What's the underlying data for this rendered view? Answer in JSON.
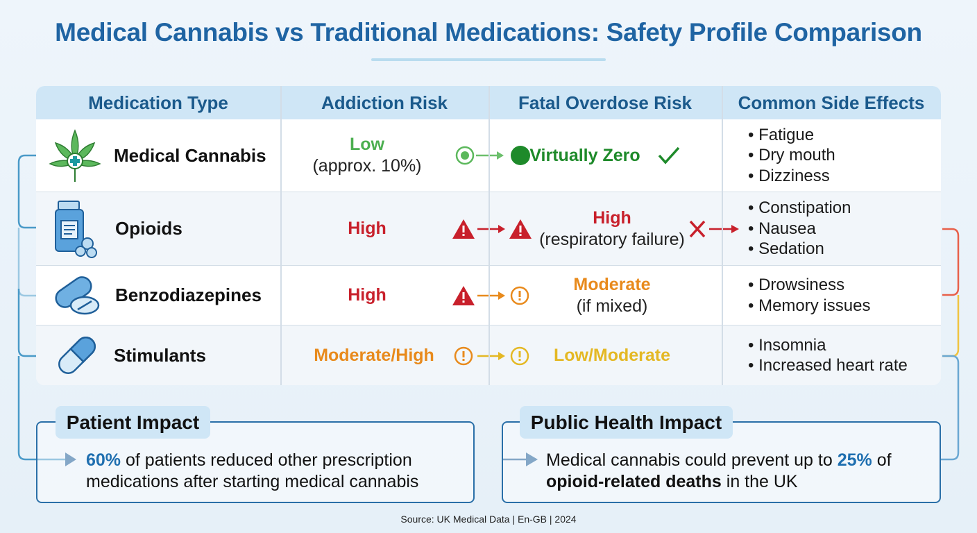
{
  "title": "Medical Cannabis vs Traditional Medications: Safety Profile Comparison",
  "table": {
    "headers": [
      "Medication Type",
      "Addiction Risk",
      "Fatal Overdose Risk",
      "Common Side Effects"
    ],
    "rows": [
      {
        "name": "Medical Cannabis",
        "icon": "cannabis-leaf-icon",
        "addiction": "Low",
        "addiction_note": "(approx. 10%)",
        "addiction_icon": "target-circle-icon",
        "overdose": "Virtually Zero",
        "overdose_note": "",
        "overdose_icon": "filled-circle-icon",
        "status_icon": "check-icon",
        "side_effects": [
          "Fatigue",
          "Dry mouth",
          "Dizziness"
        ]
      },
      {
        "name": "Opioids",
        "icon": "pill-bottle-icon",
        "addiction": "High",
        "addiction_note": "",
        "addiction_icon": "warning-triangle-icon",
        "overdose": "High",
        "overdose_note": "(respiratory failure)",
        "overdose_icon": "warning-triangle-icon",
        "status_icon": "x-icon",
        "side_effects": [
          "Constipation",
          "Nausea",
          "Sedation"
        ]
      },
      {
        "name": "Benzodiazepines",
        "icon": "pills-icon",
        "addiction": "High",
        "addiction_note": "",
        "addiction_icon": "warning-triangle-icon",
        "overdose": "Moderate",
        "overdose_note": "(if mixed)",
        "overdose_icon": "exclamation-circle-icon",
        "status_icon": "",
        "side_effects": [
          "Drowsiness",
          "Memory issues"
        ]
      },
      {
        "name": "Stimulants",
        "icon": "capsule-icon",
        "addiction": "Moderate/High",
        "addiction_note": "",
        "addiction_icon": "exclamation-circle-icon",
        "overdose": "Low/Moderate",
        "overdose_note": "",
        "overdose_icon": "exclamation-circle-icon",
        "status_icon": "",
        "side_effects": [
          "Insomnia",
          "Increased heart rate"
        ]
      }
    ]
  },
  "patient_impact": {
    "label": "Patient Impact",
    "highlight": "60%",
    "text": " of patients reduced other prescription medications after starting medical cannabis"
  },
  "public_health": {
    "label": "Public Health Impact",
    "text_before": "Medical cannabis could prevent up to ",
    "highlight": "25%",
    "text_mid": " of ",
    "bold": "opioid-related deaths",
    "text_after": " in the UK"
  },
  "source": "Source: UK Medical Data | En-GB | 2024",
  "colors": {
    "title": "#1f64a3",
    "low": "#4caf50",
    "virtually_zero": "#1e8a2a",
    "high": "#c8202b",
    "moderate": "#e88a1c",
    "low_moderate": "#e4b824",
    "accent": "#1f6fb0"
  }
}
